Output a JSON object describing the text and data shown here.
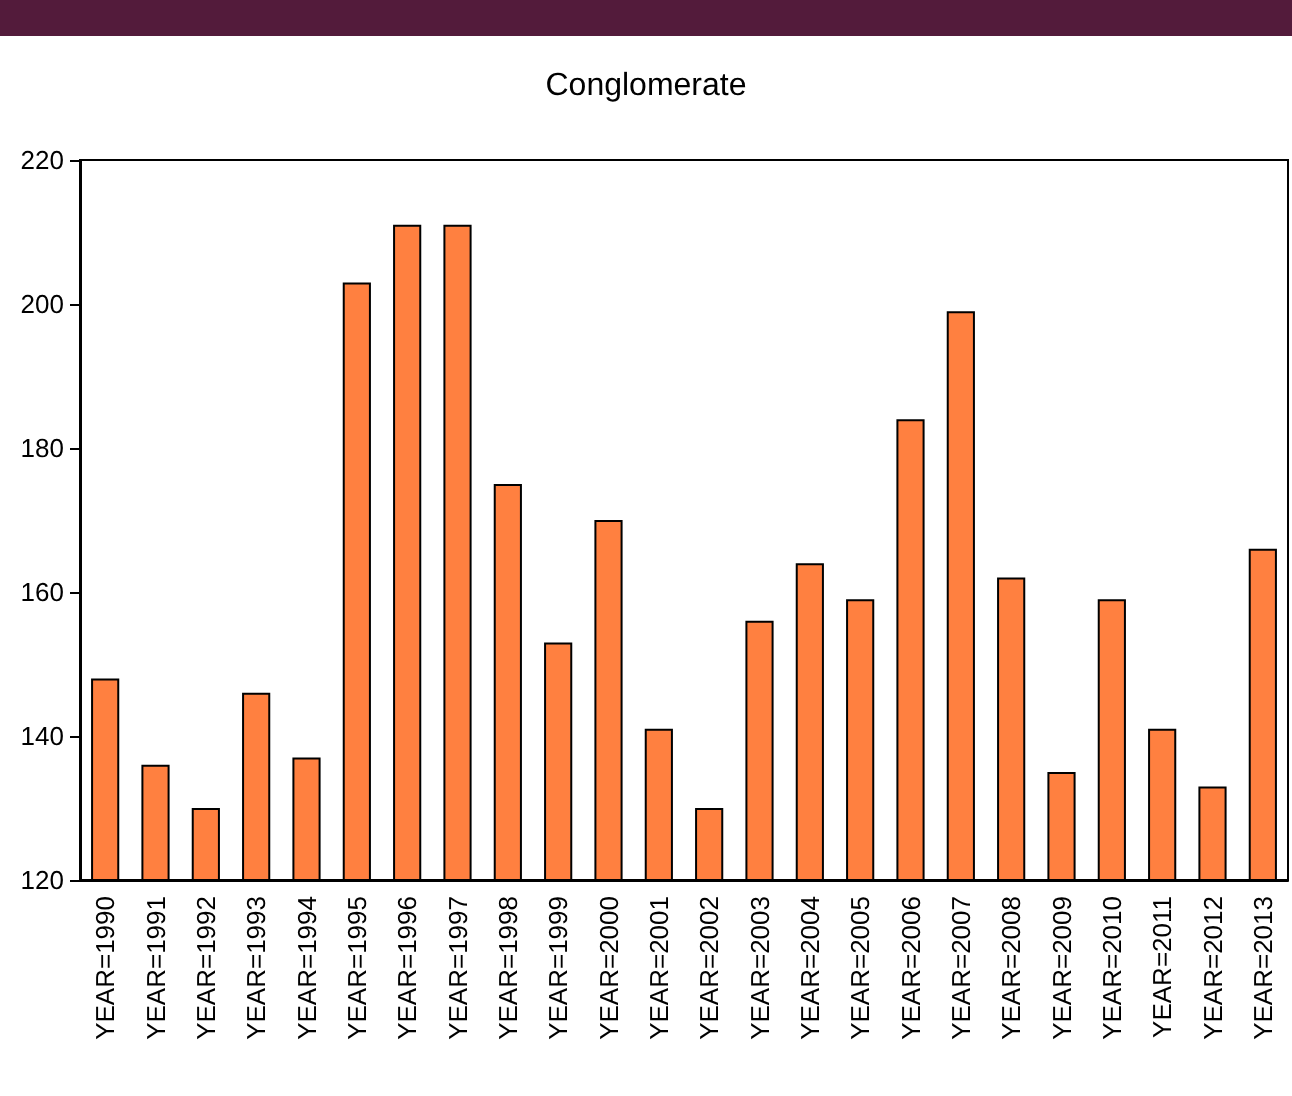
{
  "chart_data": {
    "type": "bar",
    "title": "Conglomerate",
    "categories": [
      "YEAR=1990",
      "YEAR=1991",
      "YEAR=1992",
      "YEAR=1993",
      "YEAR=1994",
      "YEAR=1995",
      "YEAR=1996",
      "YEAR=1997",
      "YEAR=1998",
      "YEAR=1999",
      "YEAR=2000",
      "YEAR=2001",
      "YEAR=2002",
      "YEAR=2003",
      "YEAR=2004",
      "YEAR=2005",
      "YEAR=2006",
      "YEAR=2007",
      "YEAR=2008",
      "YEAR=2009",
      "YEAR=2010",
      "YEAR=2011",
      "YEAR=2012",
      "YEAR=2013"
    ],
    "values": [
      148,
      136,
      130,
      146,
      137,
      203,
      211,
      211,
      175,
      153,
      170,
      141,
      130,
      156,
      164,
      159,
      184,
      199,
      162,
      135,
      159,
      141,
      133,
      166
    ],
    "color": "#ff8040",
    "ylim": [
      120,
      220
    ],
    "yticks": [
      120,
      140,
      160,
      180,
      200,
      220
    ]
  }
}
